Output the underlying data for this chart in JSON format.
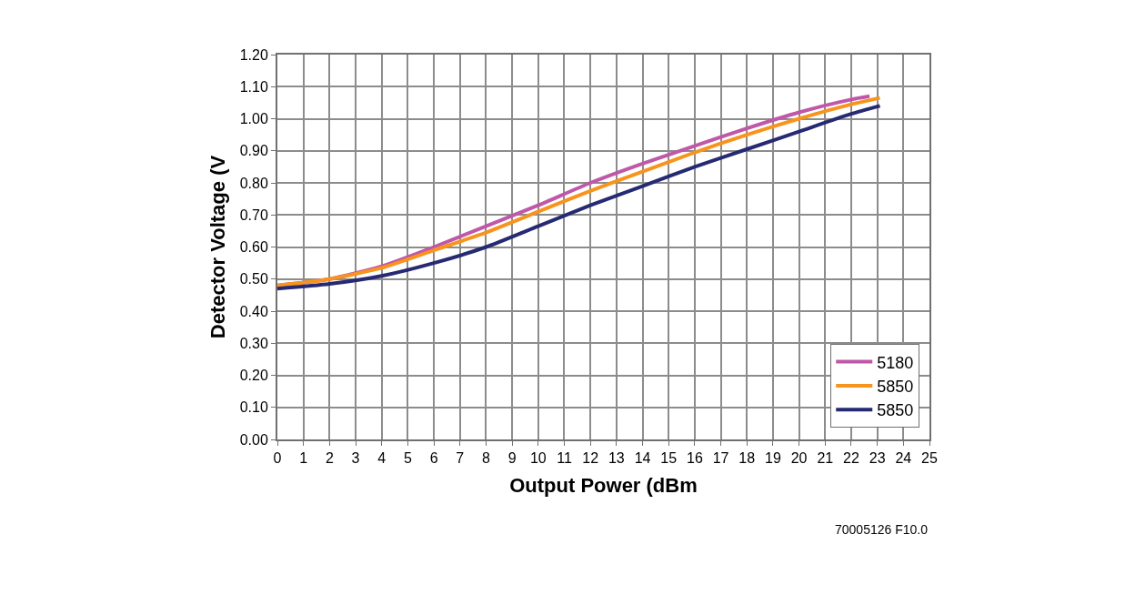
{
  "chart_data": {
    "type": "line",
    "xlabel": "Output Power (dBm",
    "ylabel": "Detector Voltage (V",
    "series": [
      {
        "name": "5180",
        "color": "#bf58a8",
        "x": [
          0,
          2,
          4,
          6,
          8,
          10,
          12,
          14,
          16,
          18,
          20,
          22,
          22.7
        ],
        "values": [
          0.48,
          0.5,
          0.54,
          0.6,
          0.665,
          0.73,
          0.8,
          0.86,
          0.915,
          0.97,
          1.02,
          1.06,
          1.07
        ]
      },
      {
        "name": "5850",
        "color": "#f7941d",
        "x": [
          0,
          2,
          4,
          6,
          8,
          10,
          12,
          14,
          16,
          18,
          20,
          22,
          23.1
        ],
        "values": [
          0.48,
          0.5,
          0.535,
          0.59,
          0.645,
          0.71,
          0.775,
          0.835,
          0.895,
          0.95,
          1.0,
          1.045,
          1.065
        ]
      },
      {
        "name": "5850",
        "color": "#262a72",
        "x": [
          0,
          2,
          4,
          6,
          8,
          10,
          12,
          14,
          16,
          18,
          20,
          22,
          23.1
        ],
        "values": [
          0.47,
          0.485,
          0.51,
          0.55,
          0.6,
          0.665,
          0.73,
          0.79,
          0.85,
          0.905,
          0.96,
          1.015,
          1.04
        ]
      }
    ],
    "xlim": [
      0,
      25
    ],
    "xticks": [
      0,
      1,
      2,
      3,
      4,
      5,
      6,
      7,
      8,
      9,
      10,
      11,
      12,
      13,
      14,
      15,
      16,
      17,
      18,
      19,
      20,
      21,
      22,
      23,
      24,
      25
    ],
    "ylim": [
      0,
      1.2
    ],
    "yticks": [
      {
        "value": 0,
        "label": "0.00"
      },
      {
        "value": 0.1,
        "label": "0.10"
      },
      {
        "value": 0.2,
        "label": "0.20"
      },
      {
        "value": 0.3,
        "label": "0.30"
      },
      {
        "value": 0.4,
        "label": "0.40"
      },
      {
        "value": 0.5,
        "label": "0.50"
      },
      {
        "value": 0.6,
        "label": "0.60"
      },
      {
        "value": 0.7,
        "label": "0.70"
      },
      {
        "value": 0.8,
        "label": "0.80"
      },
      {
        "value": 0.9,
        "label": "0.90"
      },
      {
        "value": 1.0,
        "label": "1.00"
      },
      {
        "value": 1.1,
        "label": "1.10"
      },
      {
        "value": 1.2,
        "label": "1.20"
      }
    ],
    "grid": true,
    "legend": "bottom right",
    "marker": "none",
    "line_style": "solid",
    "annotations": [
      "70005126 F10.0"
    ]
  }
}
